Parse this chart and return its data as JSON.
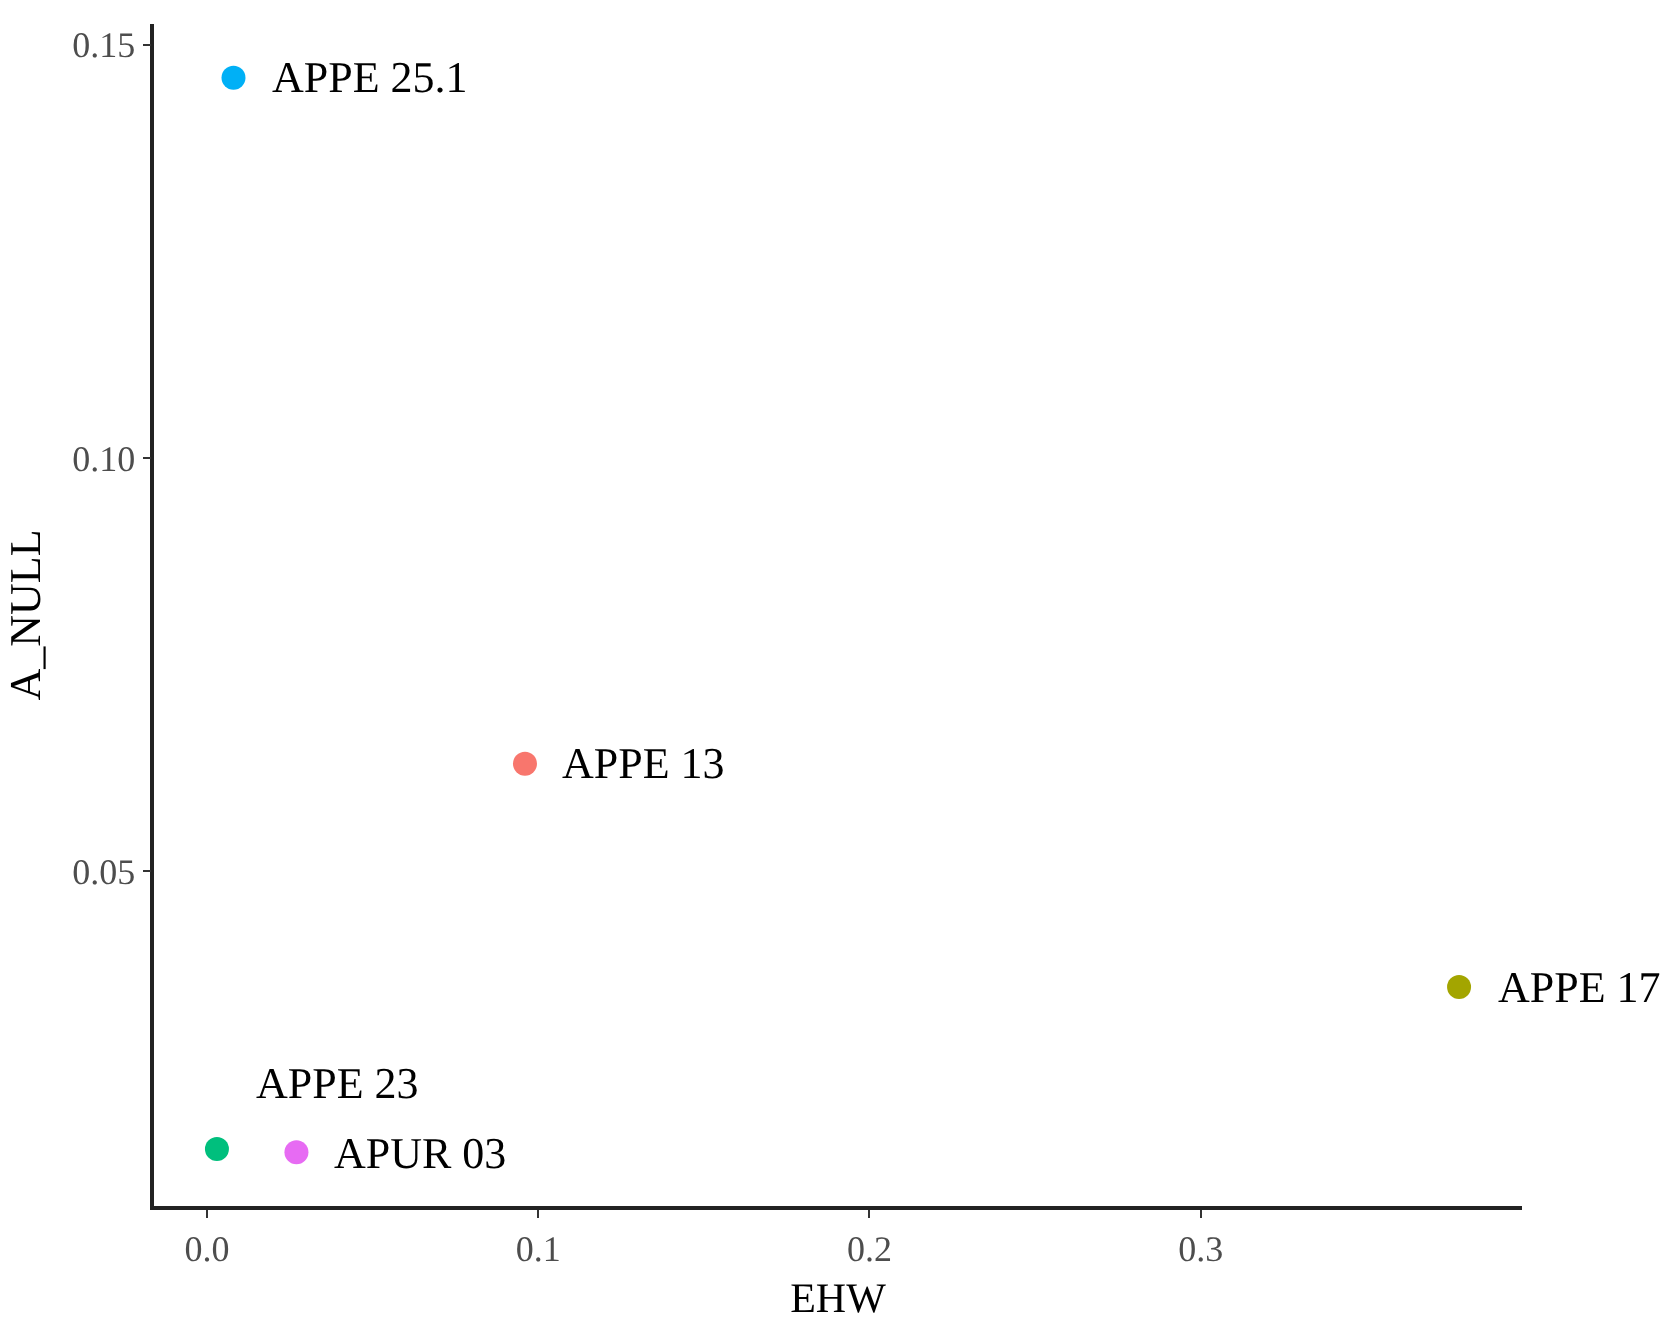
{
  "chart_data": {
    "type": "scatter",
    "xlabel": "EHW",
    "ylabel": "A_NULL",
    "marker": "circle",
    "xlim": [
      -0.016,
      0.397
    ],
    "ylim": [
      0.0095,
      0.1525
    ],
    "xticks": [
      {
        "value": 0,
        "label": "0.0"
      },
      {
        "value": 0.1,
        "label": "0.1"
      },
      {
        "value": 0.2,
        "label": "0.2"
      },
      {
        "value": 0.3,
        "label": "0.3"
      }
    ],
    "yticks": [
      0.05,
      {
        "value": 0.1,
        "label": "0.10"
      },
      0.15
    ],
    "series": [
      {
        "name": "APPE 13",
        "color": "#f8766d",
        "x": [
          0.096
        ],
        "values": [
          0.063
        ]
      },
      {
        "name": "APPE 17",
        "color": "#a3a500",
        "x": [
          0.378
        ],
        "values": [
          0.036
        ]
      },
      {
        "name": "APPE 23",
        "color": "#00bf7d",
        "x": [
          0.003
        ],
        "values": [
          0.0164
        ]
      },
      {
        "name": "APPE 25.1",
        "color": "#00b0f6",
        "x": [
          0.008
        ],
        "values": [
          0.146
        ]
      },
      {
        "name": "APUR 03",
        "color": "#e76bf3",
        "x": [
          0.027
        ],
        "values": [
          0.016
        ]
      }
    ]
  }
}
